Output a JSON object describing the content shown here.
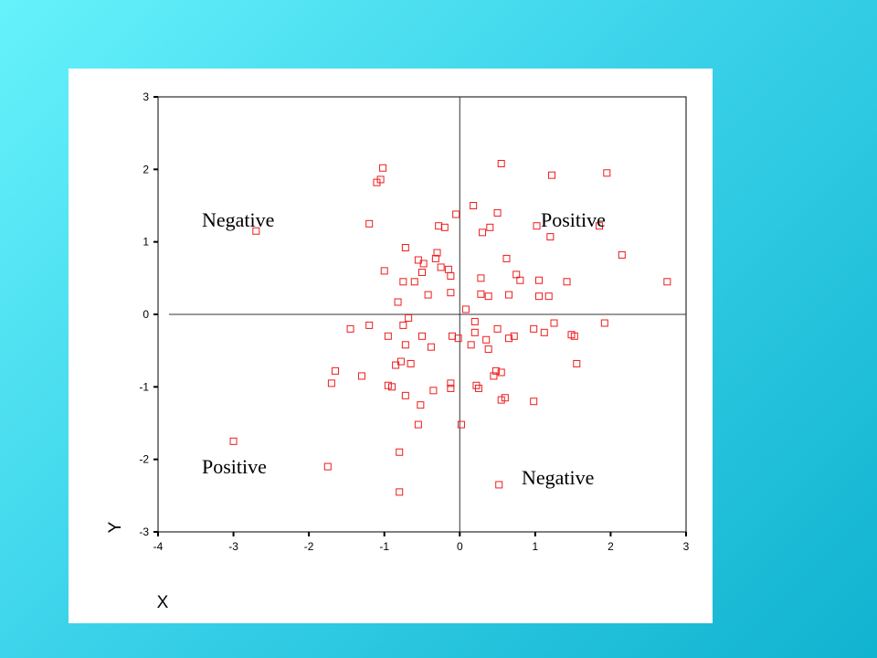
{
  "colors": {
    "background": "#3cd3ea",
    "panel": "#ffffff",
    "marker": "#ee1c1c",
    "axis": "#000000"
  },
  "chart_data": {
    "type": "scatter",
    "xlabel": "X",
    "ylabel": "Y",
    "xlim": [
      -4,
      3
    ],
    "ylim": [
      -3,
      3
    ],
    "xticks": [
      -4,
      -3,
      -2,
      -1,
      0,
      1,
      2,
      3
    ],
    "yticks": [
      -3,
      -2,
      -1,
      0,
      1,
      2,
      3
    ],
    "reference_lines": {
      "x": 0,
      "y": 0
    },
    "quadrant_labels": [
      {
        "text": "Negative",
        "quadrant": "upper-left"
      },
      {
        "text": "Positive",
        "quadrant": "upper-right"
      },
      {
        "text": "Positive",
        "quadrant": "lower-left"
      },
      {
        "text": "Negative",
        "quadrant": "lower-right"
      }
    ],
    "marker": "open-square",
    "points": [
      [
        -2.7,
        1.15
      ],
      [
        -3.0,
        -1.75
      ],
      [
        -1.75,
        -2.1
      ],
      [
        -1.7,
        -0.95
      ],
      [
        -1.65,
        -0.78
      ],
      [
        -1.45,
        -0.2
      ],
      [
        -1.3,
        -0.85
      ],
      [
        -1.2,
        -0.15
      ],
      [
        -1.2,
        1.25
      ],
      [
        -1.1,
        1.82
      ],
      [
        -1.05,
        1.86
      ],
      [
        -1.02,
        2.02
      ],
      [
        -1.0,
        0.6
      ],
      [
        -0.95,
        -0.3
      ],
      [
        -0.95,
        -0.98
      ],
      [
        -0.9,
        -1.0
      ],
      [
        -0.85,
        -0.7
      ],
      [
        -0.82,
        0.17
      ],
      [
        -0.8,
        -1.9
      ],
      [
        -0.8,
        -2.45
      ],
      [
        -0.78,
        -0.65
      ],
      [
        -0.75,
        0.45
      ],
      [
        -0.75,
        -0.15
      ],
      [
        -0.72,
        0.92
      ],
      [
        -0.72,
        -0.42
      ],
      [
        -0.72,
        -1.12
      ],
      [
        -0.68,
        -0.05
      ],
      [
        -0.65,
        -0.68
      ],
      [
        -0.6,
        0.45
      ],
      [
        -0.55,
        0.75
      ],
      [
        -0.55,
        -1.52
      ],
      [
        -0.52,
        -1.25
      ],
      [
        -0.5,
        0.58
      ],
      [
        -0.5,
        -0.3
      ],
      [
        -0.48,
        0.7
      ],
      [
        -0.42,
        0.27
      ],
      [
        -0.38,
        -0.45
      ],
      [
        -0.35,
        -1.05
      ],
      [
        -0.32,
        0.77
      ],
      [
        -0.3,
        0.85
      ],
      [
        -0.28,
        1.22
      ],
      [
        -0.25,
        0.65
      ],
      [
        -0.2,
        1.2
      ],
      [
        -0.15,
        0.62
      ],
      [
        -0.12,
        0.53
      ],
      [
        -0.12,
        0.3
      ],
      [
        -0.12,
        -0.95
      ],
      [
        -0.12,
        -1.02
      ],
      [
        -0.1,
        -0.3
      ],
      [
        -0.05,
        1.38
      ],
      [
        -0.02,
        -0.33
      ],
      [
        0.02,
        -1.52
      ],
      [
        0.08,
        0.07
      ],
      [
        0.15,
        -0.42
      ],
      [
        0.18,
        1.5
      ],
      [
        0.2,
        -0.1
      ],
      [
        0.2,
        -0.25
      ],
      [
        0.22,
        -0.98
      ],
      [
        0.25,
        -1.02
      ],
      [
        0.28,
        0.28
      ],
      [
        0.28,
        0.5
      ],
      [
        0.3,
        1.13
      ],
      [
        0.35,
        -0.35
      ],
      [
        0.38,
        0.25
      ],
      [
        0.38,
        -0.48
      ],
      [
        0.4,
        1.2
      ],
      [
        0.45,
        -0.85
      ],
      [
        0.48,
        -0.78
      ],
      [
        0.5,
        -0.2
      ],
      [
        0.5,
        1.4
      ],
      [
        0.52,
        -2.35
      ],
      [
        0.55,
        -0.8
      ],
      [
        0.55,
        -1.18
      ],
      [
        0.55,
        2.08
      ],
      [
        0.6,
        -1.15
      ],
      [
        0.62,
        0.77
      ],
      [
        0.65,
        0.27
      ],
      [
        0.65,
        -0.33
      ],
      [
        0.72,
        -0.3
      ],
      [
        0.75,
        0.55
      ],
      [
        0.8,
        0.47
      ],
      [
        0.98,
        -0.2
      ],
      [
        0.98,
        -1.2
      ],
      [
        1.02,
        1.22
      ],
      [
        1.05,
        0.25
      ],
      [
        1.05,
        0.47
      ],
      [
        1.12,
        -0.25
      ],
      [
        1.18,
        0.25
      ],
      [
        1.2,
        1.07
      ],
      [
        1.22,
        1.92
      ],
      [
        1.25,
        -0.12
      ],
      [
        1.42,
        0.45
      ],
      [
        1.48,
        -0.28
      ],
      [
        1.52,
        -0.3
      ],
      [
        1.55,
        -0.68
      ],
      [
        1.85,
        1.22
      ],
      [
        1.92,
        -0.12
      ],
      [
        1.95,
        1.95
      ],
      [
        2.15,
        0.82
      ],
      [
        2.75,
        0.45
      ]
    ]
  }
}
